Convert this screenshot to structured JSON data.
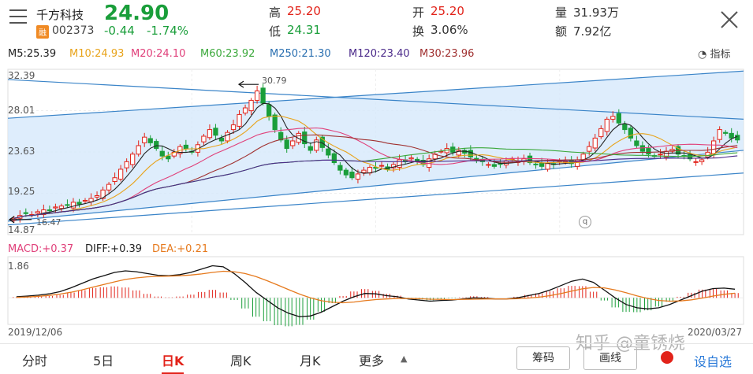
{
  "header": {
    "stock_name": "千方科技",
    "badge": "融",
    "stock_code": "002373",
    "price": "24.90",
    "change": "-0.44",
    "change_pct": "-1.74%",
    "high_label": "高",
    "high_value": "25.20",
    "low_label": "低",
    "low_value": "24.31",
    "open_label": "开",
    "open_value": "25.20",
    "turnover_label": "换",
    "turnover_value": "3.06%",
    "volume_label": "量",
    "volume_value": "31.93万",
    "amount_label": "额",
    "amount_value": "7.92亿"
  },
  "ma_legend": [
    {
      "label": "M5:25.39",
      "color": "#222222"
    },
    {
      "label": "M10:24.93",
      "color": "#e8a31a"
    },
    {
      "label": "M20:24.10",
      "color": "#e0407a"
    },
    {
      "label": "M60:23.92",
      "color": "#3aa83a"
    },
    {
      "label": "M250:21.30",
      "color": "#2a6fb0"
    },
    {
      "label": "M120:23.40",
      "color": "#4b2a8a"
    },
    {
      "label": "M30:23.96",
      "color": "#a03030"
    }
  ],
  "indicator_button": "指标",
  "macd_legend": {
    "macd": "MACD:+0.37",
    "diff": "DIFF:+0.39",
    "dea": "DEA:+0.21"
  },
  "macd_axis_max": "1.86",
  "date_start": "2019/12/06",
  "date_end": "2020/03/27",
  "tabs": [
    "分时",
    "5日",
    "日K",
    "周K",
    "月K",
    "更多"
  ],
  "active_tab": "日K",
  "buttons": {
    "chips": "筹码",
    "draw": "画线",
    "alert": "设自选"
  },
  "watermark": "知乎 @童锈烧",
  "colors": {
    "up": "#e2231a",
    "down": "#1a9e3a",
    "channel": "#d6e8fb",
    "trend": "#3a84c8"
  },
  "chart_data": [
    {
      "type": "candlestick",
      "y_ticks": [
        "32.39",
        "28.01",
        "23.63",
        "19.25",
        "14.87"
      ],
      "ylim": [
        14.87,
        32.39
      ],
      "annotations": [
        {
          "text": "30.79",
          "value": 30.79,
          "kind": "high"
        },
        {
          "text": "16.47",
          "value": 16.47,
          "kind": "low"
        }
      ],
      "close": [
        16.6,
        16.9,
        17.1,
        17.0,
        17.3,
        17.5,
        17.4,
        17.8,
        17.9,
        18.0,
        18.3,
        18.1,
        18.5,
        18.7,
        19.0,
        19.6,
        20.2,
        20.9,
        21.8,
        22.6,
        23.4,
        24.3,
        25.2,
        24.6,
        24.0,
        23.2,
        22.9,
        23.6,
        24.2,
        24.0,
        23.6,
        24.4,
        25.3,
        26.0,
        25.4,
        24.8,
        25.7,
        26.5,
        27.6,
        28.3,
        29.1,
        30.1,
        28.8,
        27.4,
        26.0,
        24.9,
        24.0,
        24.8,
        25.6,
        24.5,
        23.8,
        24.9,
        24.1,
        23.3,
        22.5,
        21.7,
        21.2,
        20.9,
        21.3,
        21.7,
        22.0,
        21.9,
        22.2,
        21.8,
        22.3,
        22.8,
        22.6,
        23.0,
        22.6,
        22.3,
        22.9,
        23.4,
        23.7,
        24.0,
        23.6,
        23.8,
        23.5,
        23.1,
        22.7,
        22.6,
        22.3,
        22.1,
        22.4,
        22.7,
        22.9,
        22.6,
        22.9,
        22.5,
        22.3,
        22.1,
        22.4,
        22.3,
        22.7,
        22.6,
        22.4,
        22.8,
        23.4,
        24.2,
        25.1,
        26.1,
        27.1,
        27.4,
        26.7,
        26.0,
        25.1,
        24.3,
        23.7,
        23.4,
        23.2,
        23.4,
        23.7,
        23.9,
        23.4,
        23.2,
        22.9,
        22.6,
        22.8,
        23.6,
        24.8,
        26.0,
        25.6,
        25.1,
        24.9
      ]
    },
    {
      "type": "macd",
      "ylim": [
        -1.2,
        1.86
      ],
      "series": [
        {
          "name": "DIFF",
          "color": "#111111",
          "values": [
            0.05,
            0.08,
            0.12,
            0.18,
            0.28,
            0.45,
            0.65,
            0.85,
            1.0,
            1.15,
            1.22,
            1.18,
            1.1,
            1.02,
            1.0,
            1.05,
            1.15,
            1.3,
            1.45,
            1.4,
            1.1,
            0.7,
            0.25,
            -0.1,
            -0.45,
            -0.7,
            -0.85,
            -0.82,
            -0.65,
            -0.4,
            -0.15,
            0.05,
            0.2,
            0.18,
            0.1,
            0.05,
            -0.05,
            -0.1,
            -0.15,
            -0.12,
            -0.1,
            -0.05,
            0.0,
            -0.02,
            -0.05,
            -0.05,
            0.0,
            0.1,
            0.2,
            0.35,
            0.55,
            0.75,
            0.85,
            0.7,
            0.35,
            0.0,
            -0.3,
            -0.45,
            -0.5,
            -0.45,
            -0.3,
            -0.1,
            0.1,
            0.3,
            0.42,
            0.44,
            0.39
          ]
        },
        {
          "name": "DEA",
          "color": "#e67a1e",
          "values": [
            0.02,
            0.04,
            0.07,
            0.11,
            0.17,
            0.25,
            0.36,
            0.48,
            0.6,
            0.72,
            0.83,
            0.9,
            0.95,
            0.97,
            0.98,
            1.0,
            1.03,
            1.08,
            1.15,
            1.2,
            1.18,
            1.1,
            0.96,
            0.78,
            0.58,
            0.37,
            0.17,
            0.0,
            -0.13,
            -0.2,
            -0.22,
            -0.19,
            -0.13,
            -0.08,
            -0.05,
            -0.03,
            -0.03,
            -0.04,
            -0.06,
            -0.07,
            -0.08,
            -0.07,
            -0.06,
            -0.05,
            -0.05,
            -0.05,
            -0.04,
            -0.01,
            0.03,
            0.1,
            0.19,
            0.3,
            0.41,
            0.47,
            0.45,
            0.36,
            0.23,
            0.09,
            -0.03,
            -0.12,
            -0.15,
            -0.14,
            -0.09,
            -0.01,
            0.08,
            0.16,
            0.21
          ]
        }
      ]
    }
  ]
}
